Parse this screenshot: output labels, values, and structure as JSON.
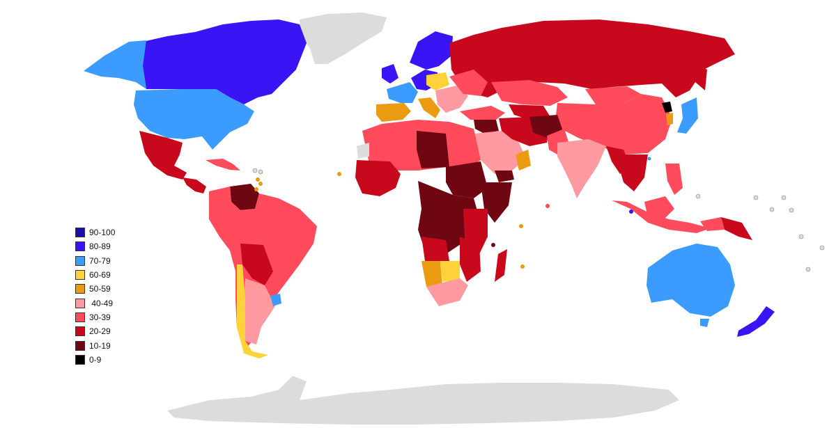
{
  "legend": {
    "items": [
      {
        "label": "90-100",
        "color": "#1a0fa6"
      },
      {
        "label": "80-89",
        "color": "#3a14f5"
      },
      {
        "label": "70-79",
        "color": "#3b9bff"
      },
      {
        "label": "60-69",
        "color": "#ffd23a"
      },
      {
        "label": "50-59",
        "color": "#eb9b12"
      },
      {
        "label": " 40-49",
        "color": "#ff9aa0"
      },
      {
        "label": "30-39",
        "color": "#ff4b5c"
      },
      {
        "label": "20-29",
        "color": "#c8081c"
      },
      {
        "label": "10-19",
        "color": "#6e0712"
      },
      {
        "label": "0-9",
        "color": "#000000"
      }
    ]
  },
  "colors": {
    "no_data": "#dcdcdc",
    "ocean": "#ffffff",
    "border": "#ffffff"
  }
}
